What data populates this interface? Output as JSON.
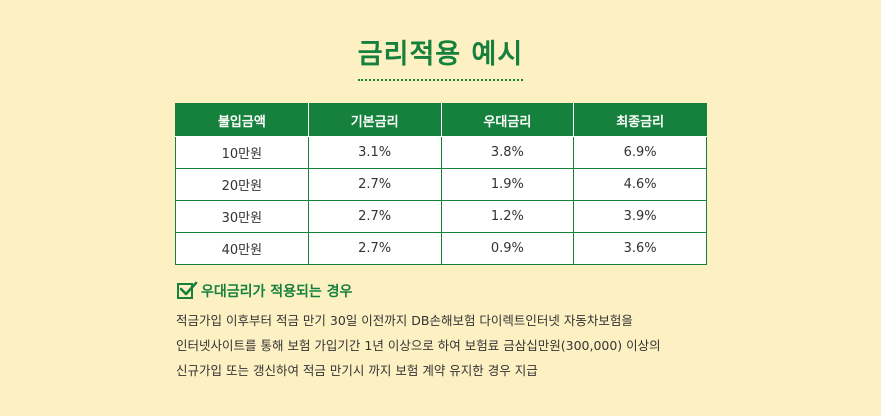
{
  "title": "금리적용 예시",
  "table": {
    "headers": [
      "불입금액",
      "기본금리",
      "우대금리",
      "최종금리"
    ],
    "rows": [
      [
        "10만원",
        "3.1%",
        "3.8%",
        "6.9%"
      ],
      [
        "20만원",
        "2.7%",
        "1.9%",
        "4.6%"
      ],
      [
        "30만원",
        "2.7%",
        "1.2%",
        "3.9%"
      ],
      [
        "40만원",
        "2.7%",
        "0.9%",
        "3.6%"
      ]
    ]
  },
  "condition": {
    "icon": "checkbox-checked-icon",
    "title": "우대금리가 적용되는 경우",
    "lines": [
      "적금가입 이후부터 적금 만기 30일 이전까지 DB손해보험 다이렉트인터넷 자동차보험을",
      "인터넷사이트를 통해 보험 가입기간 1년 이상으로 하여 보험료 금삼십만원(300,000) 이상의",
      "신규가입 또는 갱신하여 적금 만기시 까지 보험 계약 유지한 경우 지급"
    ]
  },
  "colors": {
    "accent": "#16803d",
    "background": "#fdf1c4"
  }
}
